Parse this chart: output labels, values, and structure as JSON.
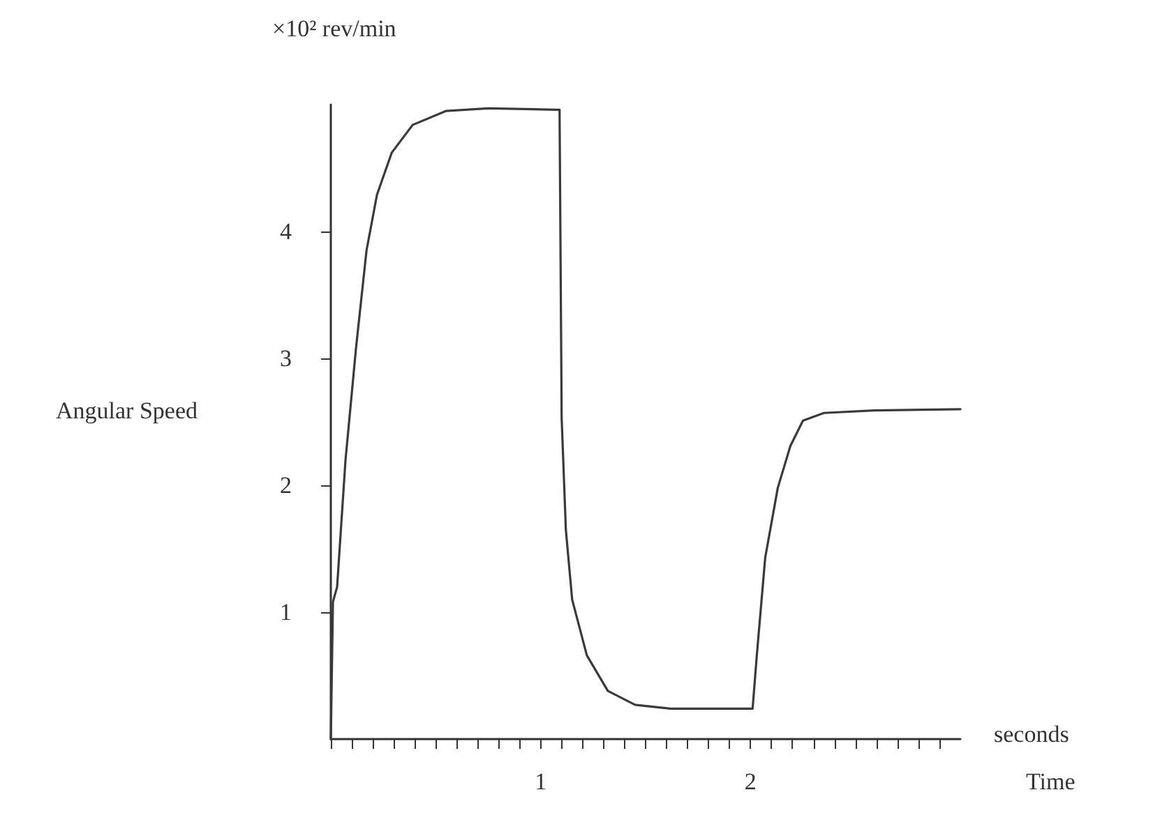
{
  "chart_data": {
    "type": "line",
    "xlabel": "Time",
    "ylabel": "Angular Speed",
    "annotations": [
      "×10² rev/min",
      "seconds"
    ],
    "series": [
      {
        "color": "#3a3a3a",
        "x": [
          0,
          0.01,
          0.03,
          0.07,
          0.12,
          0.17,
          0.22,
          0.29,
          0.39,
          0.55,
          0.75,
          1.07,
          1.09,
          1.1,
          1.12,
          1.15,
          1.22,
          1.32,
          1.45,
          1.62,
          2.01,
          2.03,
          2.07,
          2.13,
          2.19,
          2.25,
          2.35,
          2.59,
          3.0
        ],
        "values": [
          0,
          1.08,
          1.2,
          2.2,
          3.08,
          3.85,
          4.29,
          4.62,
          4.84,
          4.95,
          4.97,
          4.96,
          4.96,
          2.53,
          1.65,
          1.1,
          0.66,
          0.38,
          0.27,
          0.24,
          0.24,
          0.66,
          1.43,
          1.98,
          2.31,
          2.51,
          2.57,
          2.59,
          2.6
        ]
      }
    ],
    "xlim": [
      0,
      3
    ],
    "xticks": [
      {
        "value": 0,
        "label": null
      },
      {
        "value": 0.1,
        "label": null
      },
      {
        "value": 0.2,
        "label": null
      },
      {
        "value": 0.3,
        "label": null
      },
      {
        "value": 0.4,
        "label": null
      },
      {
        "value": 0.5,
        "label": null
      },
      {
        "value": 0.6,
        "label": null
      },
      {
        "value": 0.7,
        "label": null
      },
      {
        "value": 0.8,
        "label": null
      },
      {
        "value": 0.9,
        "label": null
      },
      1,
      {
        "value": 1.1,
        "label": null
      },
      {
        "value": 1.2,
        "label": null
      },
      {
        "value": 1.3,
        "label": null
      },
      {
        "value": 1.4,
        "label": null
      },
      {
        "value": 1.5,
        "label": null
      },
      {
        "value": 1.6,
        "label": null
      },
      {
        "value": 1.7,
        "label": null
      },
      {
        "value": 1.8,
        "label": null
      },
      {
        "value": 1.9,
        "label": null
      },
      2,
      {
        "value": 2.1,
        "label": null
      },
      {
        "value": 2.2,
        "label": null
      },
      {
        "value": 2.3,
        "label": null
      },
      {
        "value": 2.4,
        "label": null
      },
      {
        "value": 2.5,
        "label": null
      },
      {
        "value": 2.6,
        "label": null
      },
      {
        "value": 2.7,
        "label": null
      },
      {
        "value": 2.8,
        "label": null
      },
      {
        "value": 2.9,
        "label": null
      }
    ],
    "ylim": [
      0,
      5
    ],
    "yticks": [
      1,
      2,
      3,
      4
    ],
    "grid": false,
    "marker": "none",
    "line_style": "solid"
  }
}
